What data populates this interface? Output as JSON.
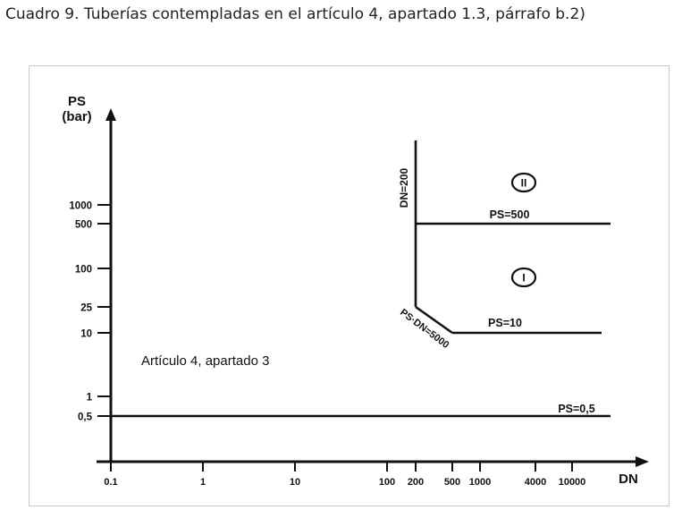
{
  "caption": "Cuadro 9. Tuberías contempladas en el artículo 4, apartado 1.3, párrafo b.2)",
  "chart_data": {
    "type": "line",
    "y_axis": {
      "label_line1": "PS",
      "label_line2": "(bar)",
      "ticks": [
        {
          "label": "0,5",
          "value": 0.5
        },
        {
          "label": "1",
          "value": 1
        },
        {
          "label": "10",
          "value": 10
        },
        {
          "label": "25",
          "value": 25
        },
        {
          "label": "100",
          "value": 100
        },
        {
          "label": "500",
          "value": 500
        },
        {
          "label": "1000",
          "value": 1000
        }
      ]
    },
    "x_axis": {
      "label": "DN",
      "ticks": [
        {
          "label": "0.1",
          "value": 0.1
        },
        {
          "label": "1",
          "value": 1
        },
        {
          "label": "10",
          "value": 10
        },
        {
          "label": "100",
          "value": 100
        },
        {
          "label": "200",
          "value": 200
        },
        {
          "label": "500",
          "value": 500
        },
        {
          "label": "1000",
          "value": 1000
        },
        {
          "label": "4000",
          "value": 4000
        },
        {
          "label": "10000",
          "value": 10000
        }
      ]
    },
    "series": [
      {
        "name": "PS=0,5",
        "x": [
          0.1,
          40000
        ],
        "y": [
          0.5,
          0.5
        ]
      },
      {
        "name": "DN=200",
        "x": [
          200,
          200
        ],
        "y": [
          25,
          20000
        ]
      },
      {
        "name": "PS=500",
        "x": [
          200,
          40000
        ],
        "y": [
          500,
          500
        ]
      },
      {
        "name": "PS·DN=5000",
        "x": [
          200,
          500
        ],
        "y": [
          25,
          10
        ]
      },
      {
        "name": "PS=10",
        "x": [
          500,
          20000
        ],
        "y": [
          10,
          10
        ]
      }
    ],
    "annotations": {
      "region_text": "Artículo 4, apartado 3",
      "zone_i": "I",
      "zone_ii": "II"
    }
  },
  "colors": {
    "line": "#111111",
    "frame": "#c8c8c8",
    "caption": "#222222"
  }
}
